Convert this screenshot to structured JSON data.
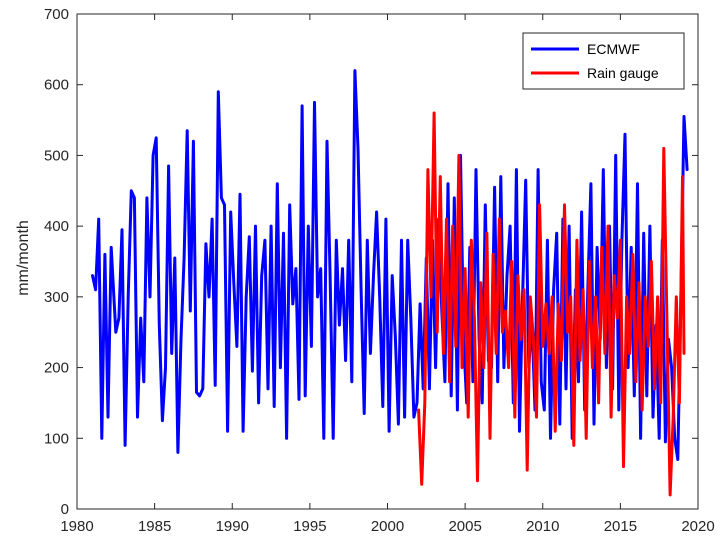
{
  "chart_data": {
    "type": "line",
    "title": "",
    "xlabel": "",
    "ylabel": "mm/month",
    "xlim": [
      1980,
      2020
    ],
    "ylim": [
      0,
      700
    ],
    "xticks": [
      1980,
      1985,
      1990,
      1995,
      2000,
      2005,
      2010,
      2015,
      2020
    ],
    "yticks": [
      0,
      100,
      200,
      300,
      400,
      500,
      600,
      700
    ],
    "grid": false,
    "legend_position": "top-right",
    "series": [
      {
        "name": "ECMWF",
        "color": "#0000ff",
        "points": [
          [
            1981.0,
            330
          ],
          [
            1981.2,
            310
          ],
          [
            1981.4,
            410
          ],
          [
            1981.6,
            100
          ],
          [
            1981.8,
            360
          ],
          [
            1982.0,
            130
          ],
          [
            1982.2,
            370
          ],
          [
            1982.5,
            250
          ],
          [
            1982.7,
            270
          ],
          [
            1982.9,
            395
          ],
          [
            1983.1,
            90
          ],
          [
            1983.3,
            300
          ],
          [
            1983.5,
            450
          ],
          [
            1983.7,
            440
          ],
          [
            1983.9,
            130
          ],
          [
            1984.1,
            270
          ],
          [
            1984.3,
            180
          ],
          [
            1984.5,
            440
          ],
          [
            1984.7,
            300
          ],
          [
            1984.9,
            500
          ],
          [
            1985.1,
            525
          ],
          [
            1985.3,
            260
          ],
          [
            1985.5,
            125
          ],
          [
            1985.7,
            200
          ],
          [
            1985.9,
            485
          ],
          [
            1986.1,
            220
          ],
          [
            1986.3,
            355
          ],
          [
            1986.5,
            80
          ],
          [
            1986.7,
            240
          ],
          [
            1986.9,
            355
          ],
          [
            1987.1,
            535
          ],
          [
            1987.3,
            280
          ],
          [
            1987.5,
            520
          ],
          [
            1987.7,
            165
          ],
          [
            1987.9,
            160
          ],
          [
            1988.1,
            170
          ],
          [
            1988.3,
            375
          ],
          [
            1988.5,
            300
          ],
          [
            1988.7,
            410
          ],
          [
            1988.9,
            175
          ],
          [
            1989.1,
            590
          ],
          [
            1989.3,
            440
          ],
          [
            1989.5,
            430
          ],
          [
            1989.7,
            110
          ],
          [
            1989.9,
            420
          ],
          [
            1990.1,
            320
          ],
          [
            1990.3,
            230
          ],
          [
            1990.5,
            445
          ],
          [
            1990.7,
            110
          ],
          [
            1990.9,
            300
          ],
          [
            1991.1,
            385
          ],
          [
            1991.3,
            195
          ],
          [
            1991.5,
            400
          ],
          [
            1991.7,
            150
          ],
          [
            1991.9,
            330
          ],
          [
            1992.1,
            380
          ],
          [
            1992.3,
            170
          ],
          [
            1992.5,
            400
          ],
          [
            1992.7,
            145
          ],
          [
            1992.9,
            460
          ],
          [
            1993.1,
            200
          ],
          [
            1993.3,
            390
          ],
          [
            1993.5,
            100
          ],
          [
            1993.7,
            430
          ],
          [
            1993.9,
            290
          ],
          [
            1994.1,
            340
          ],
          [
            1994.3,
            155
          ],
          [
            1994.5,
            570
          ],
          [
            1994.7,
            160
          ],
          [
            1994.9,
            400
          ],
          [
            1995.1,
            230
          ],
          [
            1995.3,
            575
          ],
          [
            1995.5,
            300
          ],
          [
            1995.7,
            340
          ],
          [
            1995.9,
            100
          ],
          [
            1996.1,
            520
          ],
          [
            1996.3,
            330
          ],
          [
            1996.5,
            100
          ],
          [
            1996.7,
            380
          ],
          [
            1996.9,
            260
          ],
          [
            1997.1,
            340
          ],
          [
            1997.3,
            210
          ],
          [
            1997.5,
            380
          ],
          [
            1997.7,
            180
          ],
          [
            1997.9,
            620
          ],
          [
            1998.1,
            510
          ],
          [
            1998.3,
            310
          ],
          [
            1998.5,
            135
          ],
          [
            1998.7,
            380
          ],
          [
            1998.9,
            220
          ],
          [
            1999.1,
            330
          ],
          [
            1999.3,
            420
          ],
          [
            1999.5,
            300
          ],
          [
            1999.7,
            145
          ],
          [
            1999.9,
            410
          ],
          [
            2000.1,
            110
          ],
          [
            2000.3,
            330
          ],
          [
            2000.5,
            245
          ],
          [
            2000.7,
            120
          ],
          [
            2000.9,
            380
          ],
          [
            2001.1,
            130
          ],
          [
            2001.3,
            380
          ],
          [
            2001.5,
            270
          ],
          [
            2001.7,
            130
          ],
          [
            2001.9,
            150
          ],
          [
            2002.1,
            290
          ],
          [
            2002.3,
            170
          ],
          [
            2002.5,
            355
          ],
          [
            2002.7,
            170
          ],
          [
            2002.9,
            380
          ],
          [
            2003.1,
            200
          ],
          [
            2003.3,
            410
          ],
          [
            2003.5,
            280
          ],
          [
            2003.7,
            180
          ],
          [
            2003.9,
            460
          ],
          [
            2004.1,
            160
          ],
          [
            2004.3,
            440
          ],
          [
            2004.5,
            140
          ],
          [
            2004.7,
            500
          ],
          [
            2004.9,
            240
          ],
          [
            2005.1,
            150
          ],
          [
            2005.3,
            370
          ],
          [
            2005.5,
            180
          ],
          [
            2005.7,
            480
          ],
          [
            2005.9,
            240
          ],
          [
            2006.1,
            150
          ],
          [
            2006.3,
            430
          ],
          [
            2006.5,
            210
          ],
          [
            2006.7,
            200
          ],
          [
            2006.9,
            455
          ],
          [
            2007.1,
            180
          ],
          [
            2007.3,
            470
          ],
          [
            2007.5,
            200
          ],
          [
            2007.7,
            330
          ],
          [
            2007.9,
            400
          ],
          [
            2008.1,
            150
          ],
          [
            2008.3,
            480
          ],
          [
            2008.5,
            110
          ],
          [
            2008.7,
            300
          ],
          [
            2008.9,
            465
          ],
          [
            2009.1,
            200
          ],
          [
            2009.3,
            270
          ],
          [
            2009.5,
            140
          ],
          [
            2009.7,
            480
          ],
          [
            2009.9,
            180
          ],
          [
            2010.1,
            140
          ],
          [
            2010.3,
            380
          ],
          [
            2010.5,
            100
          ],
          [
            2010.7,
            310
          ],
          [
            2010.9,
            390
          ],
          [
            2011.1,
            120
          ],
          [
            2011.3,
            410
          ],
          [
            2011.5,
            170
          ],
          [
            2011.7,
            400
          ],
          [
            2011.9,
            100
          ],
          [
            2012.1,
            310
          ],
          [
            2012.3,
            180
          ],
          [
            2012.5,
            420
          ],
          [
            2012.7,
            140
          ],
          [
            2012.9,
            310
          ],
          [
            2013.1,
            460
          ],
          [
            2013.3,
            120
          ],
          [
            2013.5,
            370
          ],
          [
            2013.7,
            240
          ],
          [
            2013.9,
            480
          ],
          [
            2014.1,
            200
          ],
          [
            2014.3,
            400
          ],
          [
            2014.5,
            170
          ],
          [
            2014.7,
            500
          ],
          [
            2014.9,
            140
          ],
          [
            2015.1,
            380
          ],
          [
            2015.3,
            530
          ],
          [
            2015.5,
            200
          ],
          [
            2015.7,
            370
          ],
          [
            2015.9,
            160
          ],
          [
            2016.1,
            460
          ],
          [
            2016.3,
            100
          ],
          [
            2016.5,
            390
          ],
          [
            2016.7,
            160
          ],
          [
            2016.9,
            400
          ],
          [
            2017.1,
            130
          ],
          [
            2017.3,
            260
          ],
          [
            2017.5,
            100
          ],
          [
            2017.7,
            380
          ],
          [
            2017.9,
            95
          ],
          [
            2018.1,
            240
          ],
          [
            2018.3,
            200
          ],
          [
            2018.5,
            100
          ],
          [
            2018.7,
            70
          ],
          [
            2018.9,
            300
          ],
          [
            2019.1,
            555
          ],
          [
            2019.3,
            480
          ]
        ]
      },
      {
        "name": "Rain gauge",
        "color": "#ff0000",
        "points": [
          [
            2002.0,
            140
          ],
          [
            2002.2,
            35
          ],
          [
            2002.4,
            150
          ],
          [
            2002.6,
            480
          ],
          [
            2002.8,
            300
          ],
          [
            2003.0,
            560
          ],
          [
            2003.2,
            250
          ],
          [
            2003.4,
            470
          ],
          [
            2003.6,
            220
          ],
          [
            2003.8,
            410
          ],
          [
            2004.0,
            180
          ],
          [
            2004.2,
            400
          ],
          [
            2004.4,
            230
          ],
          [
            2004.6,
            500
          ],
          [
            2004.8,
            200
          ],
          [
            2005.0,
            340
          ],
          [
            2005.2,
            130
          ],
          [
            2005.4,
            380
          ],
          [
            2005.6,
            270
          ],
          [
            2005.8,
            40
          ],
          [
            2006.0,
            320
          ],
          [
            2006.2,
            200
          ],
          [
            2006.4,
            390
          ],
          [
            2006.6,
            100
          ],
          [
            2006.8,
            360
          ],
          [
            2007.0,
            220
          ],
          [
            2007.2,
            410
          ],
          [
            2007.4,
            250
          ],
          [
            2007.6,
            280
          ],
          [
            2007.8,
            200
          ],
          [
            2008.0,
            350
          ],
          [
            2008.2,
            130
          ],
          [
            2008.4,
            330
          ],
          [
            2008.6,
            240
          ],
          [
            2008.8,
            310
          ],
          [
            2009.0,
            55
          ],
          [
            2009.2,
            300
          ],
          [
            2009.4,
            240
          ],
          [
            2009.6,
            130
          ],
          [
            2009.8,
            430
          ],
          [
            2010.0,
            230
          ],
          [
            2010.2,
            290
          ],
          [
            2010.4,
            220
          ],
          [
            2010.6,
            300
          ],
          [
            2010.8,
            110
          ],
          [
            2011.0,
            290
          ],
          [
            2011.2,
            210
          ],
          [
            2011.4,
            430
          ],
          [
            2011.6,
            250
          ],
          [
            2011.8,
            300
          ],
          [
            2012.0,
            90
          ],
          [
            2012.2,
            380
          ],
          [
            2012.4,
            210
          ],
          [
            2012.6,
            310
          ],
          [
            2012.8,
            100
          ],
          [
            2013.0,
            350
          ],
          [
            2013.2,
            200
          ],
          [
            2013.4,
            300
          ],
          [
            2013.6,
            150
          ],
          [
            2013.8,
            370
          ],
          [
            2014.0,
            220
          ],
          [
            2014.2,
            400
          ],
          [
            2014.4,
            130
          ],
          [
            2014.6,
            330
          ],
          [
            2014.8,
            270
          ],
          [
            2015.0,
            380
          ],
          [
            2015.2,
            60
          ],
          [
            2015.4,
            300
          ],
          [
            2015.6,
            220
          ],
          [
            2015.8,
            360
          ],
          [
            2016.0,
            180
          ],
          [
            2016.2,
            320
          ],
          [
            2016.4,
            140
          ],
          [
            2016.6,
            300
          ],
          [
            2016.8,
            230
          ],
          [
            2017.0,
            350
          ],
          [
            2017.2,
            170
          ],
          [
            2017.4,
            300
          ],
          [
            2017.6,
            150
          ],
          [
            2017.8,
            510
          ],
          [
            2018.0,
            270
          ],
          [
            2018.2,
            20
          ],
          [
            2018.4,
            130
          ],
          [
            2018.6,
            300
          ],
          [
            2018.8,
            150
          ],
          [
            2019.0,
            470
          ],
          [
            2019.1,
            220
          ]
        ]
      }
    ]
  }
}
